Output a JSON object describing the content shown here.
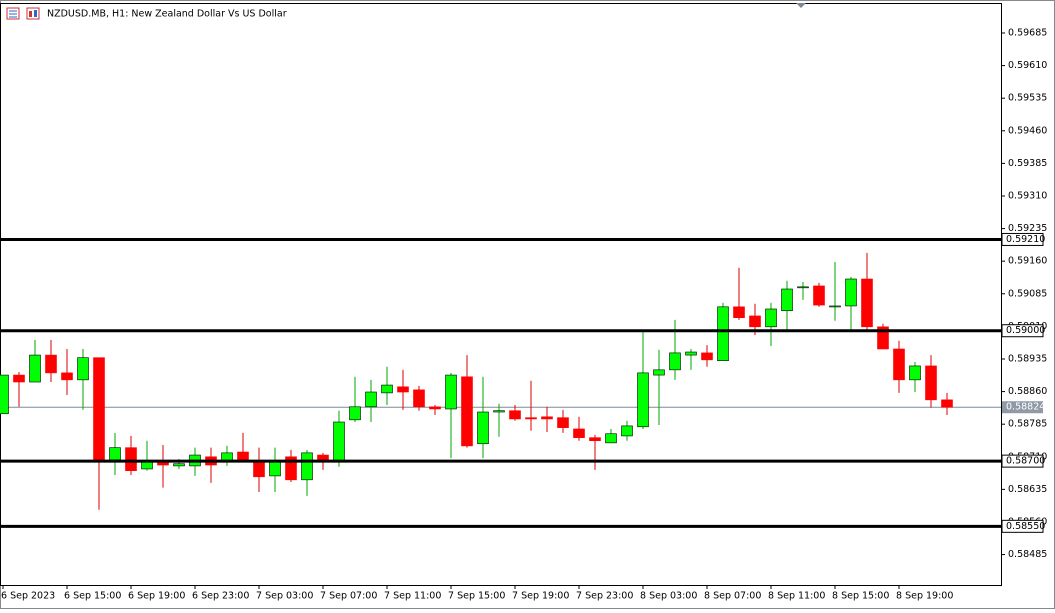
{
  "chart_data": {
    "type": "candlestick",
    "title": "NZDUSD.MB, H1:  New Zealand Dollar Vs US Dollar",
    "categories": [
      "6 Sep 2023",
      null,
      null,
      null,
      "6 Sep 15:00",
      null,
      null,
      null,
      "6 Sep 19:00",
      null,
      null,
      null,
      "6 Sep 23:00",
      null,
      null,
      null,
      "7 Sep 03:00",
      null,
      null,
      null,
      "7 Sep 07:00",
      null,
      null,
      null,
      "7 Sep 11:00",
      null,
      null,
      null,
      "7 Sep 15:00",
      null,
      null,
      null,
      "7 Sep 19:00",
      null,
      null,
      null,
      "7 Sep 23:00",
      null,
      null,
      null,
      "8 Sep 03:00",
      null,
      null,
      null,
      "8 Sep 07:00",
      null,
      null,
      null,
      "8 Sep 11:00",
      null,
      null,
      null,
      "8 Sep 15:00",
      null,
      null,
      null,
      "8 Sep 19:00",
      null,
      null,
      null
    ],
    "open": [
      0.58809,
      0.58898,
      0.58882,
      0.58944,
      0.58903,
      0.58887,
      0.58938,
      0.58703,
      0.58731,
      0.58682,
      0.58701,
      0.58689,
      0.58689,
      0.5871,
      0.58701,
      0.58721,
      0.58698,
      0.58666,
      0.5871,
      0.58657,
      0.58714,
      0.58698,
      0.58795,
      0.58825,
      0.58857,
      0.58871,
      0.58864,
      0.58825,
      0.5882,
      0.58894,
      0.5874,
      0.58813,
      0.58816,
      0.588,
      0.58802,
      0.588,
      0.58774,
      0.58754,
      0.58742,
      0.58758,
      0.58779,
      0.58898,
      0.5891,
      0.58944,
      0.58949,
      0.58931,
      0.59055,
      0.59034,
      0.59009,
      0.59046,
      0.59099,
      0.59103,
      0.59055,
      0.59057,
      0.59119,
      0.59009,
      0.58958,
      0.58887,
      0.58919,
      0.58841
    ],
    "high": [
      0.58898,
      0.58905,
      0.58979,
      0.58979,
      0.58958,
      0.58958,
      0.58938,
      0.58765,
      0.58758,
      0.58747,
      0.58737,
      0.58705,
      0.58731,
      0.58731,
      0.58735,
      0.58765,
      0.58731,
      0.58731,
      0.58726,
      0.58726,
      0.58719,
      0.58816,
      0.58894,
      0.58887,
      0.58917,
      0.5891,
      0.58873,
      0.58829,
      0.58903,
      0.58944,
      0.58894,
      0.58832,
      0.58829,
      0.58885,
      0.58825,
      0.58818,
      0.58802,
      0.5876,
      0.58774,
      0.58793,
      0.59002,
      0.58956,
      0.59025,
      0.58958,
      0.58967,
      0.59064,
      0.59145,
      0.59062,
      0.59064,
      0.59115,
      0.59112,
      0.5911,
      0.59158,
      0.59124,
      0.59179,
      0.59016,
      0.58977,
      0.58928,
      0.58944,
      0.58857
    ],
    "low": [
      0.58809,
      0.58825,
      0.58882,
      0.58882,
      0.58852,
      0.58818,
      0.58588,
      0.58668,
      0.58668,
      0.58678,
      0.58639,
      0.58682,
      0.58666,
      0.5865,
      0.58689,
      0.58698,
      0.58629,
      0.58629,
      0.58652,
      0.5862,
      0.5868,
      0.58687,
      0.5879,
      0.5879,
      0.58829,
      0.58818,
      0.58816,
      0.58806,
      0.58707,
      0.58731,
      0.58707,
      0.58756,
      0.58793,
      0.5877,
      0.58767,
      0.58765,
      0.58747,
      0.5868,
      0.58742,
      0.58747,
      0.58774,
      0.58783,
      0.58887,
      0.5891,
      0.58917,
      0.58931,
      0.59025,
      0.5899,
      0.58965,
      0.59002,
      0.59071,
      0.59055,
      0.59023,
      0.59002,
      0.58997,
      0.58958,
      0.58857,
      0.58859,
      0.58823,
      0.58806
    ],
    "close": [
      0.58898,
      0.58882,
      0.58944,
      0.58903,
      0.58887,
      0.58938,
      0.58703,
      0.58731,
      0.58678,
      0.58701,
      0.58691,
      0.58694,
      0.58714,
      0.58691,
      0.58719,
      0.58698,
      0.58664,
      0.58698,
      0.58657,
      0.58719,
      0.58698,
      0.5879,
      0.58825,
      0.58859,
      0.58875,
      0.58859,
      0.58825,
      0.5882,
      0.58898,
      0.58735,
      0.58813,
      0.58816,
      0.58797,
      0.58797,
      0.58797,
      0.58777,
      0.58754,
      0.58747,
      0.58763,
      0.58781,
      0.58903,
      0.5891,
      0.58949,
      0.58951,
      0.58933,
      0.59055,
      0.5903,
      0.59009,
      0.5905,
      0.59096,
      0.59101,
      0.59059,
      0.59057,
      0.59119,
      0.59009,
      0.58958,
      0.58887,
      0.58919,
      0.58841,
      0.58824
    ],
    "up_color": "#00ff00",
    "down_color": "#ff0000",
    "ylim": [
      0.58415,
      0.59754
    ],
    "yticks": [
      0.59685,
      {
        "value": 0.5961,
        "label": "0.59610"
      },
      0.59535,
      {
        "value": 0.5946,
        "label": "0.59460"
      },
      0.59385,
      {
        "value": 0.5931,
        "label": "0.59310"
      },
      0.59235,
      {
        "value": 0.5916,
        "label": "0.59160"
      },
      0.59085,
      {
        "value": 0.5901,
        "label": "0.59010"
      },
      0.58935,
      {
        "value": 0.5886,
        "label": "0.58860"
      },
      0.58785,
      {
        "value": 0.5871,
        "label": "0.58710"
      },
      0.58635,
      {
        "value": 0.5856,
        "label": "0.58560"
      },
      0.58485
    ],
    "levels": [
      {
        "value": 0.5921,
        "label": "0.59210"
      },
      {
        "value": 0.59,
        "label": "0.59000"
      },
      {
        "value": 0.587,
        "label": "0.58700"
      },
      {
        "value": 0.5855,
        "label": "0.58550"
      }
    ],
    "current_price": 0.58824
  }
}
